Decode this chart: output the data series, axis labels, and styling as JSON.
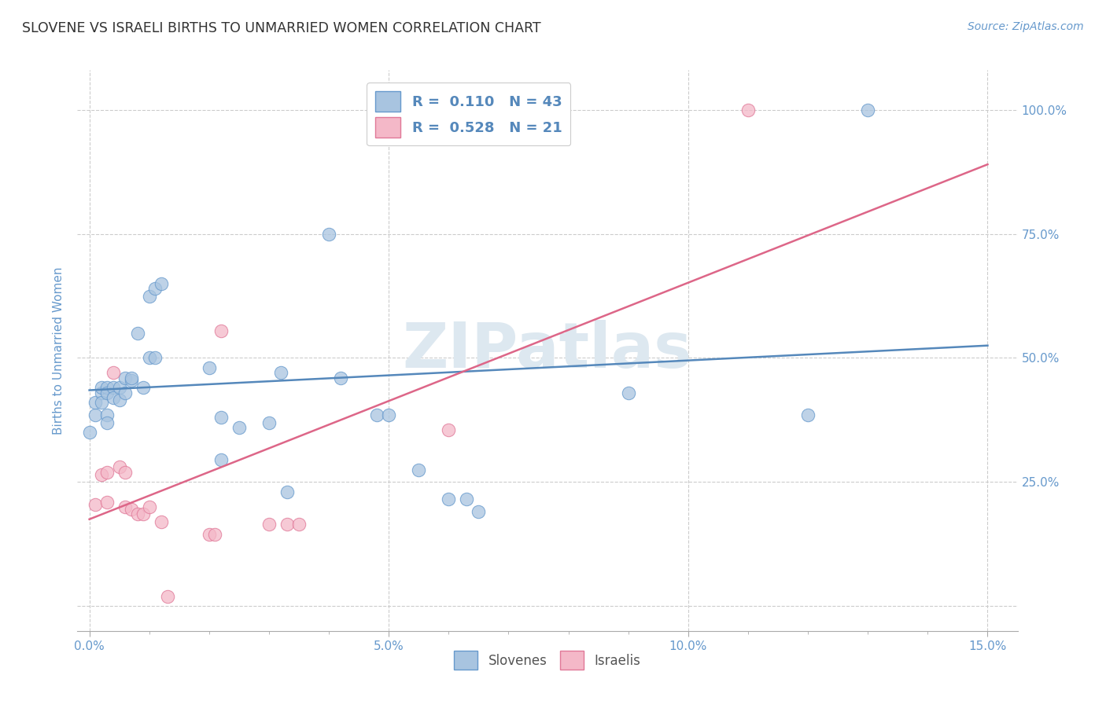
{
  "title": "SLOVENE VS ISRAELI BIRTHS TO UNMARRIED WOMEN CORRELATION CHART",
  "source": "Source: ZipAtlas.com",
  "ylabel": "Births to Unmarried Women",
  "xlim": [
    -0.002,
    0.155
  ],
  "ylim": [
    -0.05,
    1.08
  ],
  "plot_ylim": [
    0.0,
    1.05
  ],
  "x_ticks": [
    0.0,
    0.05,
    0.1,
    0.15
  ],
  "y_ticks": [
    0.0,
    0.25,
    0.5,
    0.75,
    1.0
  ],
  "x_tick_labels": [
    "0.0%",
    "5.0%",
    "10.0%",
    "15.0%"
  ],
  "y_tick_labels": [
    "",
    "25.0%",
    "50.0%",
    "75.0%",
    "100.0%"
  ],
  "blue_color": "#a8c4e0",
  "blue_edge_color": "#6699cc",
  "pink_color": "#f4b8c8",
  "pink_edge_color": "#e07898",
  "blue_line_color": "#5588bb",
  "pink_line_color": "#dd6688",
  "tick_color": "#6699cc",
  "grid_color": "#cccccc",
  "watermark_color": "#dde8f0",
  "title_color": "#333333",
  "source_color": "#6699cc",
  "ylabel_color": "#6699cc",
  "blue_trend": [
    0.0,
    0.15,
    0.435,
    0.525
  ],
  "pink_trend": [
    0.0,
    0.15,
    0.175,
    0.89
  ],
  "slovene_x": [
    0.001,
    0.001,
    0.002,
    0.002,
    0.002,
    0.003,
    0.003,
    0.003,
    0.003,
    0.004,
    0.004,
    0.005,
    0.005,
    0.006,
    0.006,
    0.007,
    0.007,
    0.008,
    0.009,
    0.01,
    0.01,
    0.011,
    0.011,
    0.012,
    0.02,
    0.022,
    0.022,
    0.025,
    0.03,
    0.032,
    0.033,
    0.04,
    0.042,
    0.048,
    0.05,
    0.055,
    0.06,
    0.063,
    0.065,
    0.09,
    0.12,
    0.13,
    0.0
  ],
  "slovene_y": [
    0.385,
    0.41,
    0.43,
    0.41,
    0.44,
    0.44,
    0.43,
    0.385,
    0.37,
    0.44,
    0.42,
    0.44,
    0.415,
    0.43,
    0.46,
    0.455,
    0.46,
    0.55,
    0.44,
    0.625,
    0.5,
    0.64,
    0.5,
    0.65,
    0.48,
    0.38,
    0.295,
    0.36,
    0.37,
    0.47,
    0.23,
    0.75,
    0.46,
    0.385,
    0.385,
    0.275,
    0.215,
    0.215,
    0.19,
    0.43,
    0.385,
    1.0,
    0.35
  ],
  "israeli_x": [
    0.001,
    0.002,
    0.003,
    0.003,
    0.004,
    0.005,
    0.006,
    0.006,
    0.007,
    0.008,
    0.009,
    0.01,
    0.012,
    0.013,
    0.02,
    0.021,
    0.022,
    0.03,
    0.033,
    0.035,
    0.06,
    0.11
  ],
  "israeli_y": [
    0.205,
    0.265,
    0.27,
    0.21,
    0.47,
    0.28,
    0.27,
    0.2,
    0.195,
    0.185,
    0.185,
    0.2,
    0.17,
    0.02,
    0.145,
    0.145,
    0.555,
    0.165,
    0.165,
    0.165,
    0.355,
    1.0
  ]
}
